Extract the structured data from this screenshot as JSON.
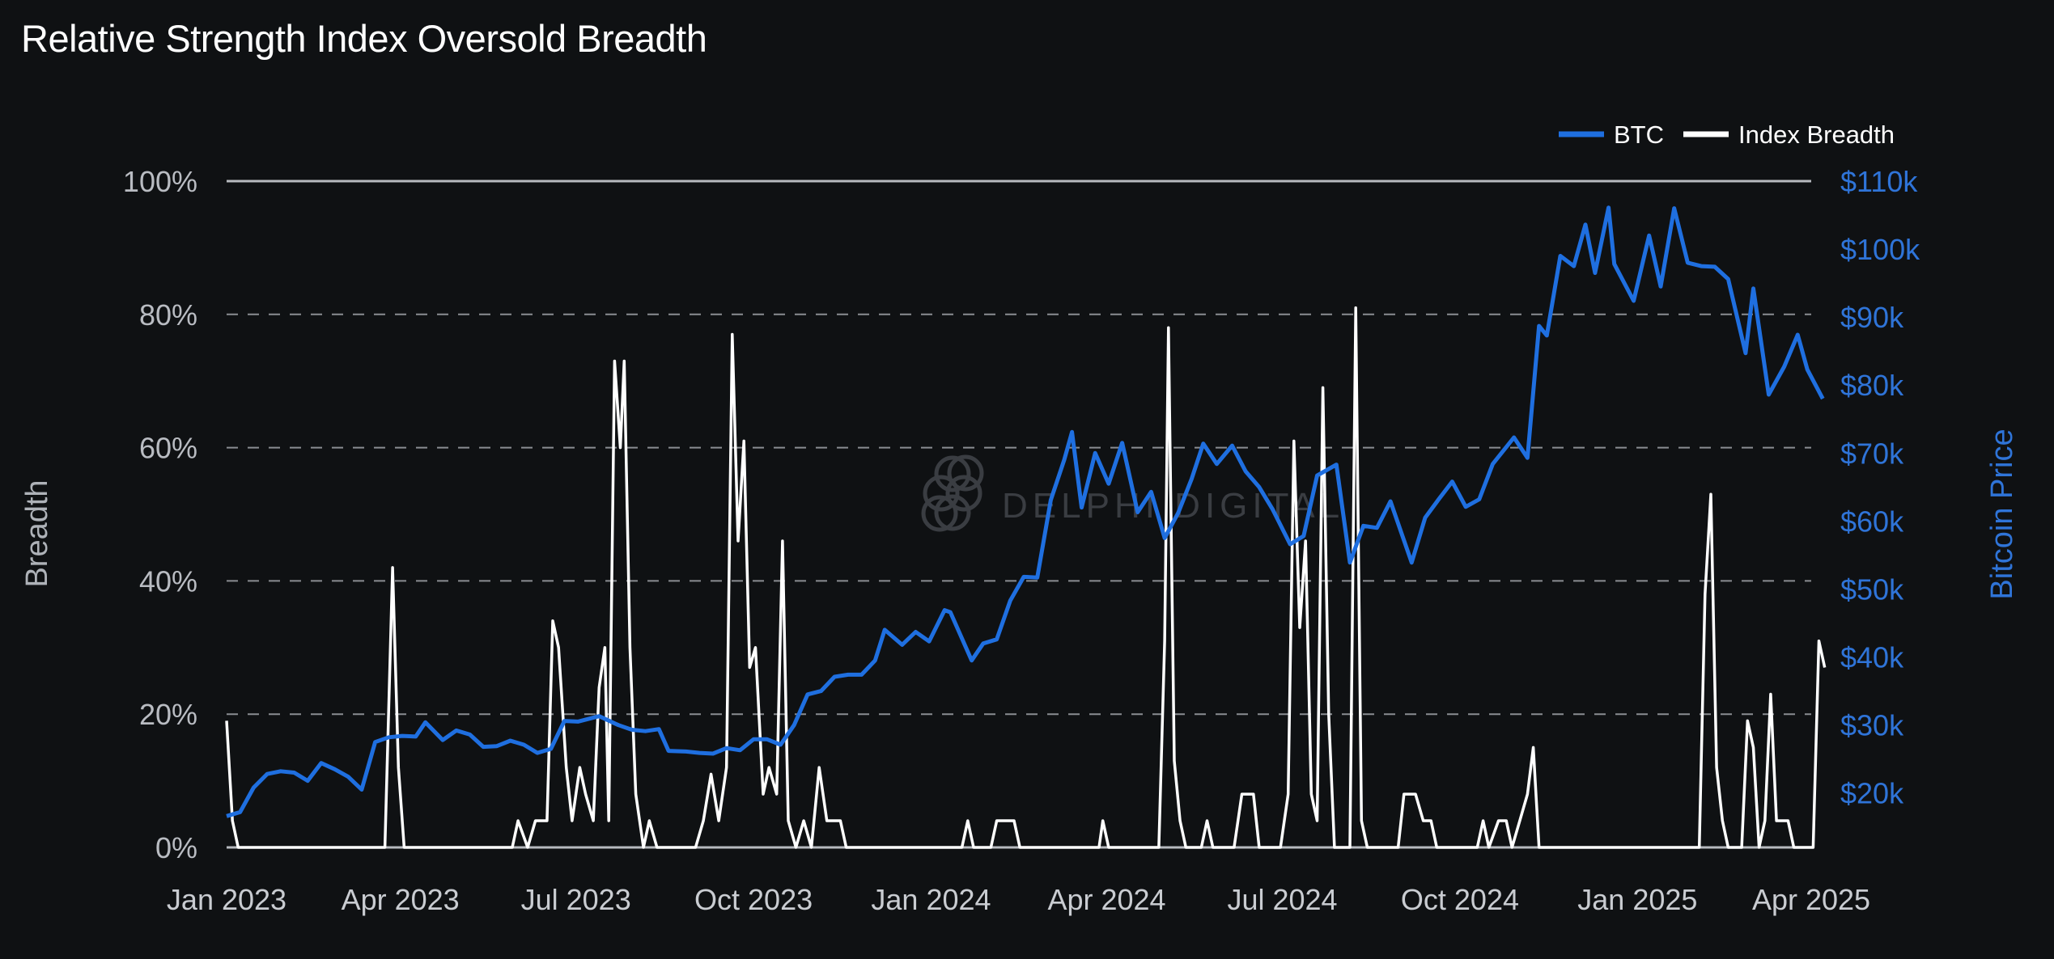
{
  "chart_data": {
    "type": "line",
    "title": "Relative Strength Index Oversold Breadth",
    "ylabel_left": "Breadth",
    "ylabel_right": "Bitcoin Price",
    "watermark": "DELPHI DIGITAL",
    "left_axis": {
      "range": [
        0,
        100
      ],
      "ticks": [
        "0%",
        "20%",
        "40%",
        "60%",
        "80%",
        "100%"
      ],
      "tick_values": [
        0,
        20,
        40,
        60,
        80,
        100
      ]
    },
    "right_axis": {
      "range": [
        12000,
        110000
      ],
      "ticks": [
        "$20k",
        "$30k",
        "$40k",
        "$50k",
        "$60k",
        "$70k",
        "$80k",
        "$90k",
        "$100k",
        "$110k"
      ],
      "tick_values": [
        20000,
        30000,
        40000,
        50000,
        60000,
        70000,
        80000,
        90000,
        100000,
        110000
      ]
    },
    "x_axis": {
      "range": [
        "2023-01-01",
        "2025-04-01"
      ],
      "ticks": [
        "Jan 2023",
        "Apr 2023",
        "Jul 2023",
        "Oct 2023",
        "Jan 2024",
        "Apr 2024",
        "Jul 2024",
        "Oct 2024",
        "Jan 2025",
        "Apr 2025"
      ],
      "tick_dates": [
        "2023-01-01",
        "2023-04-01",
        "2023-07-01",
        "2023-10-01",
        "2024-01-01",
        "2024-04-01",
        "2024-07-01",
        "2024-10-01",
        "2025-01-01",
        "2025-04-01"
      ]
    },
    "grid": true,
    "legend": {
      "placement": "top-right"
    },
    "series": [
      {
        "name": "BTC",
        "axis": "right",
        "color": "#1f6fe0",
        "points": [
          [
            "2023-01-01",
            16600
          ],
          [
            "2023-01-08",
            17200
          ],
          [
            "2023-01-15",
            20800
          ],
          [
            "2023-01-22",
            22800
          ],
          [
            "2023-01-29",
            23200
          ],
          [
            "2023-02-05",
            23000
          ],
          [
            "2023-02-12",
            21800
          ],
          [
            "2023-02-19",
            24400
          ],
          [
            "2023-02-26",
            23500
          ],
          [
            "2023-03-05",
            22400
          ],
          [
            "2023-03-12",
            20500
          ],
          [
            "2023-03-19",
            27500
          ],
          [
            "2023-03-26",
            28200
          ],
          [
            "2023-04-02",
            28400
          ],
          [
            "2023-04-09",
            28300
          ],
          [
            "2023-04-14",
            30400
          ],
          [
            "2023-04-23",
            27800
          ],
          [
            "2023-04-30",
            29200
          ],
          [
            "2023-05-07",
            28600
          ],
          [
            "2023-05-14",
            26800
          ],
          [
            "2023-05-21",
            26900
          ],
          [
            "2023-05-28",
            27700
          ],
          [
            "2023-06-04",
            27100
          ],
          [
            "2023-06-11",
            25900
          ],
          [
            "2023-06-18",
            26500
          ],
          [
            "2023-06-25",
            30600
          ],
          [
            "2023-07-02",
            30500
          ],
          [
            "2023-07-13",
            31300
          ],
          [
            "2023-07-23",
            30000
          ],
          [
            "2023-07-30",
            29300
          ],
          [
            "2023-08-06",
            29100
          ],
          [
            "2023-08-13",
            29400
          ],
          [
            "2023-08-18",
            26200
          ],
          [
            "2023-08-27",
            26100
          ],
          [
            "2023-09-03",
            25900
          ],
          [
            "2023-09-10",
            25800
          ],
          [
            "2023-09-17",
            26600
          ],
          [
            "2023-09-24",
            26300
          ],
          [
            "2023-10-01",
            27900
          ],
          [
            "2023-10-08",
            27900
          ],
          [
            "2023-10-15",
            27100
          ],
          [
            "2023-10-22",
            30000
          ],
          [
            "2023-10-29",
            34500
          ],
          [
            "2023-11-05",
            35000
          ],
          [
            "2023-11-12",
            37100
          ],
          [
            "2023-11-19",
            37400
          ],
          [
            "2023-11-26",
            37400
          ],
          [
            "2023-12-03",
            39500
          ],
          [
            "2023-12-08",
            44000
          ],
          [
            "2023-12-17",
            41800
          ],
          [
            "2023-12-24",
            43700
          ],
          [
            "2023-12-31",
            42300
          ],
          [
            "2024-01-08",
            46900
          ],
          [
            "2024-01-11",
            46600
          ],
          [
            "2024-01-22",
            39500
          ],
          [
            "2024-01-28",
            42000
          ],
          [
            "2024-02-04",
            42600
          ],
          [
            "2024-02-11",
            48300
          ],
          [
            "2024-02-18",
            51800
          ],
          [
            "2024-02-25",
            51700
          ],
          [
            "2024-03-03",
            63100
          ],
          [
            "2024-03-10",
            69000
          ],
          [
            "2024-03-14",
            73100
          ],
          [
            "2024-03-19",
            62000
          ],
          [
            "2024-03-26",
            70000
          ],
          [
            "2024-04-02",
            65500
          ],
          [
            "2024-04-09",
            71500
          ],
          [
            "2024-04-17",
            61300
          ],
          [
            "2024-04-24",
            64300
          ],
          [
            "2024-05-01",
            57500
          ],
          [
            "2024-05-08",
            61200
          ],
          [
            "2024-05-15",
            66200
          ],
          [
            "2024-05-21",
            71400
          ],
          [
            "2024-05-28",
            68400
          ],
          [
            "2024-06-05",
            71100
          ],
          [
            "2024-06-12",
            67300
          ],
          [
            "2024-06-19",
            65000
          ],
          [
            "2024-06-26",
            61700
          ],
          [
            "2024-07-05",
            56600
          ],
          [
            "2024-07-12",
            57800
          ],
          [
            "2024-07-19",
            66700
          ],
          [
            "2024-07-29",
            68300
          ],
          [
            "2024-08-05",
            53900
          ],
          [
            "2024-08-12",
            59300
          ],
          [
            "2024-08-19",
            59000
          ],
          [
            "2024-08-26",
            62900
          ],
          [
            "2024-09-06",
            53900
          ],
          [
            "2024-09-13",
            60500
          ],
          [
            "2024-09-20",
            63200
          ],
          [
            "2024-09-27",
            65800
          ],
          [
            "2024-10-04",
            62100
          ],
          [
            "2024-10-11",
            63200
          ],
          [
            "2024-10-18",
            68400
          ],
          [
            "2024-10-29",
            72300
          ],
          [
            "2024-11-05",
            69300
          ],
          [
            "2024-11-11",
            88700
          ],
          [
            "2024-11-15",
            87300
          ],
          [
            "2024-11-22",
            99000
          ],
          [
            "2024-11-29",
            97500
          ],
          [
            "2024-12-05",
            103600
          ],
          [
            "2024-12-10",
            96500
          ],
          [
            "2024-12-17",
            106100
          ],
          [
            "2024-12-20",
            97800
          ],
          [
            "2024-12-30",
            92400
          ],
          [
            "2025-01-07",
            102000
          ],
          [
            "2025-01-13",
            94500
          ],
          [
            "2025-01-20",
            106000
          ],
          [
            "2025-01-27",
            98000
          ],
          [
            "2025-02-03",
            97500
          ],
          [
            "2025-02-10",
            97400
          ],
          [
            "2025-02-17",
            95600
          ],
          [
            "2025-02-26",
            84700
          ],
          [
            "2025-03-02",
            94200
          ],
          [
            "2025-03-10",
            78600
          ],
          [
            "2025-03-18",
            82700
          ],
          [
            "2025-03-25",
            87400
          ],
          [
            "2025-03-30",
            82300
          ],
          [
            "2025-04-07",
            78000
          ]
        ]
      },
      {
        "name": "Index Breadth",
        "axis": "left",
        "color": "#ffffff",
        "points": [
          [
            "2023-01-01",
            19
          ],
          [
            "2023-01-04",
            4
          ],
          [
            "2023-01-07",
            0
          ],
          [
            "2023-03-24",
            0
          ],
          [
            "2023-03-28",
            42
          ],
          [
            "2023-03-31",
            12
          ],
          [
            "2023-04-03",
            0
          ],
          [
            "2023-05-29",
            0
          ],
          [
            "2023-06-01",
            4
          ],
          [
            "2023-06-06",
            0
          ],
          [
            "2023-06-10",
            4
          ],
          [
            "2023-06-16",
            4
          ],
          [
            "2023-06-19",
            34
          ],
          [
            "2023-06-22",
            30
          ],
          [
            "2023-06-26",
            12
          ],
          [
            "2023-06-29",
            4
          ],
          [
            "2023-07-03",
            12
          ],
          [
            "2023-07-06",
            8
          ],
          [
            "2023-07-10",
            4
          ],
          [
            "2023-07-13",
            24
          ],
          [
            "2023-07-16",
            30
          ],
          [
            "2023-07-18",
            4
          ],
          [
            "2023-07-21",
            73
          ],
          [
            "2023-07-24",
            60
          ],
          [
            "2023-07-26",
            73
          ],
          [
            "2023-07-29",
            30
          ],
          [
            "2023-08-01",
            8
          ],
          [
            "2023-08-05",
            0
          ],
          [
            "2023-08-08",
            4
          ],
          [
            "2023-08-12",
            0
          ],
          [
            "2023-09-01",
            0
          ],
          [
            "2023-09-05",
            4
          ],
          [
            "2023-09-09",
            11
          ],
          [
            "2023-09-13",
            4
          ],
          [
            "2023-09-17",
            12
          ],
          [
            "2023-09-20",
            77
          ],
          [
            "2023-09-23",
            46
          ],
          [
            "2023-09-26",
            61
          ],
          [
            "2023-09-29",
            27
          ],
          [
            "2023-10-02",
            30
          ],
          [
            "2023-10-06",
            8
          ],
          [
            "2023-10-09",
            12
          ],
          [
            "2023-10-13",
            8
          ],
          [
            "2023-10-16",
            46
          ],
          [
            "2023-10-19",
            4
          ],
          [
            "2023-10-23",
            0
          ],
          [
            "2023-10-27",
            4
          ],
          [
            "2023-10-31",
            0
          ],
          [
            "2023-11-04",
            12
          ],
          [
            "2023-11-08",
            4
          ],
          [
            "2023-11-15",
            4
          ],
          [
            "2023-11-18",
            0
          ],
          [
            "2024-01-17",
            0
          ],
          [
            "2024-01-20",
            4
          ],
          [
            "2024-01-23",
            0
          ],
          [
            "2024-02-01",
            0
          ],
          [
            "2024-02-04",
            4
          ],
          [
            "2024-02-13",
            4
          ],
          [
            "2024-02-16",
            0
          ],
          [
            "2024-03-28",
            0
          ],
          [
            "2024-03-30",
            4
          ],
          [
            "2024-04-02",
            0
          ],
          [
            "2024-04-28",
            0
          ],
          [
            "2024-05-01",
            31
          ],
          [
            "2024-05-03",
            78
          ],
          [
            "2024-05-06",
            13
          ],
          [
            "2024-05-09",
            4
          ],
          [
            "2024-05-12",
            0
          ],
          [
            "2024-05-20",
            0
          ],
          [
            "2024-05-23",
            4
          ],
          [
            "2024-05-26",
            0
          ],
          [
            "2024-06-06",
            0
          ],
          [
            "2024-06-10",
            8
          ],
          [
            "2024-06-16",
            8
          ],
          [
            "2024-06-19",
            0
          ],
          [
            "2024-06-30",
            0
          ],
          [
            "2024-07-04",
            8
          ],
          [
            "2024-07-07",
            61
          ],
          [
            "2024-07-10",
            33
          ],
          [
            "2024-07-13",
            46
          ],
          [
            "2024-07-16",
            8
          ],
          [
            "2024-07-19",
            4
          ],
          [
            "2024-07-22",
            69
          ],
          [
            "2024-07-25",
            20
          ],
          [
            "2024-07-28",
            0
          ],
          [
            "2024-08-05",
            0
          ],
          [
            "2024-08-08",
            81
          ],
          [
            "2024-08-11",
            4
          ],
          [
            "2024-08-14",
            0
          ],
          [
            "2024-08-30",
            0
          ],
          [
            "2024-09-02",
            8
          ],
          [
            "2024-09-08",
            8
          ],
          [
            "2024-09-12",
            4
          ],
          [
            "2024-09-16",
            4
          ],
          [
            "2024-09-19",
            0
          ],
          [
            "2024-10-10",
            0
          ],
          [
            "2024-10-13",
            4
          ],
          [
            "2024-10-16",
            0
          ],
          [
            "2024-10-21",
            4
          ],
          [
            "2024-10-25",
            4
          ],
          [
            "2024-10-28",
            0
          ],
          [
            "2024-11-01",
            4
          ],
          [
            "2024-11-05",
            8
          ],
          [
            "2024-11-08",
            15
          ],
          [
            "2024-11-11",
            0
          ],
          [
            "2025-02-02",
            0
          ],
          [
            "2025-02-05",
            38
          ],
          [
            "2025-02-08",
            53
          ],
          [
            "2025-02-11",
            12
          ],
          [
            "2025-02-14",
            4
          ],
          [
            "2025-02-17",
            0
          ],
          [
            "2025-02-24",
            0
          ],
          [
            "2025-02-27",
            19
          ],
          [
            "2025-03-02",
            15
          ],
          [
            "2025-03-05",
            0
          ],
          [
            "2025-03-08",
            4
          ],
          [
            "2025-03-11",
            23
          ],
          [
            "2025-03-14",
            4
          ],
          [
            "2025-03-20",
            4
          ],
          [
            "2025-03-23",
            0
          ],
          [
            "2025-04-02",
            0
          ],
          [
            "2025-04-05",
            31
          ],
          [
            "2025-04-08",
            27
          ]
        ]
      }
    ]
  }
}
